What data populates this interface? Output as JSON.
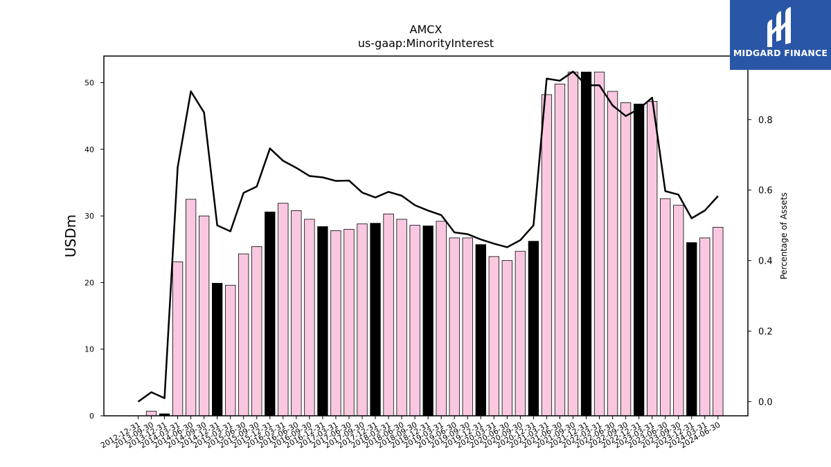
{
  "chart_data": {
    "type": "bar",
    "title": "AMCX",
    "subtitle": "us-gaap:MinorityInterest",
    "ylabel": "USDm",
    "y2label": "Percentage of Assets",
    "ylim": [
      0,
      54
    ],
    "y2lim": [
      -0.04,
      0.98
    ],
    "yticks": [
      0,
      10,
      20,
      30,
      40,
      50
    ],
    "y2ticks": [
      0.0,
      0.2,
      0.4,
      0.6,
      0.8
    ],
    "bar_color": "#f9c8e0",
    "highlight_color": "#000000",
    "line_color": "#000000",
    "categories": [
      "2012-12-31",
      "2013-09-30",
      "2013-12-31",
      "2014-03-31",
      "2014-06-30",
      "2014-09-30",
      "2014-12-31",
      "2015-03-31",
      "2015-06-30",
      "2015-09-30",
      "2015-12-31",
      "2016-03-31",
      "2016-06-30",
      "2016-09-30",
      "2016-12-31",
      "2017-03-31",
      "2017-06-30",
      "2017-09-30",
      "2017-12-31",
      "2018-03-31",
      "2018-06-30",
      "2018-09-30",
      "2018-12-31",
      "2019-03-31",
      "2019-06-30",
      "2019-09-30",
      "2019-12-31",
      "2020-03-31",
      "2020-06-30",
      "2020-09-30",
      "2020-12-31",
      "2021-03-31",
      "2021-06-30",
      "2021-09-30",
      "2021-12-31",
      "2022-03-31",
      "2022-06-30",
      "2022-09-30",
      "2022-12-31",
      "2023-03-31",
      "2023-06-30",
      "2023-09-30",
      "2023-12-31",
      "2024-03-31",
      "2024-06-30"
    ],
    "series": [
      {
        "kind": "bar",
        "axis": "left",
        "values": [
          0,
          0.7,
          0.3,
          23.1,
          32.5,
          30.0,
          19.9,
          19.6,
          24.3,
          25.4,
          30.6,
          31.9,
          30.8,
          29.5,
          28.4,
          27.8,
          28.0,
          28.8,
          28.9,
          30.3,
          29.5,
          28.6,
          28.5,
          29.2,
          26.7,
          26.7,
          25.7,
          23.9,
          23.3,
          24.7,
          26.2,
          48.2,
          49.8,
          51.6,
          51.6,
          51.6,
          48.7,
          47.0,
          46.8,
          47.2,
          32.6,
          31.6,
          26.0,
          26.7,
          28.3
        ],
        "highlighted": [
          false,
          false,
          true,
          false,
          false,
          false,
          true,
          false,
          false,
          false,
          true,
          false,
          false,
          false,
          true,
          false,
          false,
          false,
          true,
          false,
          false,
          false,
          true,
          false,
          false,
          false,
          true,
          false,
          false,
          false,
          true,
          false,
          false,
          false,
          true,
          false,
          false,
          false,
          true,
          false,
          false,
          false,
          true,
          false,
          false
        ]
      },
      {
        "kind": "line",
        "axis": "right",
        "values": [
          0.0,
          0.027,
          0.01,
          0.665,
          0.88,
          0.82,
          0.5,
          0.483,
          0.592,
          0.61,
          0.718,
          0.683,
          0.663,
          0.64,
          0.636,
          0.626,
          0.627,
          0.593,
          0.579,
          0.595,
          0.584,
          0.557,
          0.542,
          0.529,
          0.48,
          0.475,
          0.46,
          0.448,
          0.438,
          0.458,
          0.5,
          0.916,
          0.91,
          0.936,
          0.897,
          0.897,
          0.84,
          0.81,
          0.83,
          0.862,
          0.597,
          0.587,
          0.52,
          0.542,
          0.583
        ]
      }
    ]
  },
  "logo": {
    "text": "MIDGARD FINANCE",
    "bg_color": "#2a56a8"
  }
}
